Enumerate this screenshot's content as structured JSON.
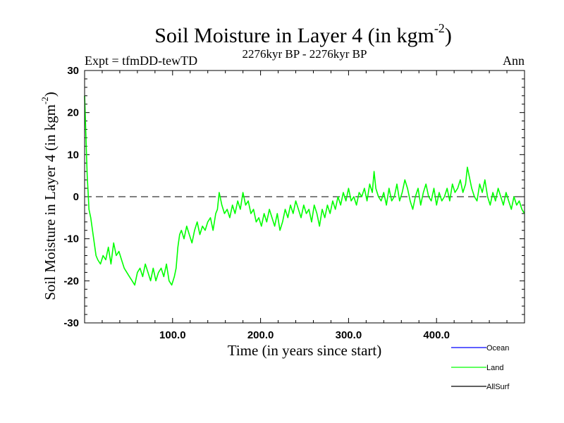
{
  "chart_data": {
    "type": "line",
    "title": "Soil Moisture in Layer 4 (in kgm",
    "title_sup": "-2",
    "title_close": ")",
    "subtitle_left": "Expt = tfmDD-tewTD",
    "subtitle_center": "2276kyr BP - 2276kyr BP",
    "subtitle_right": "Ann",
    "xlabel": "Time (in years since start)",
    "ylabel": "Soil Moisture in Layer 4 (in kgm",
    "ylabel_sup": "-2",
    "ylabel_close": ")",
    "xlim": [
      0,
      500
    ],
    "ylim": [
      -30,
      30
    ],
    "x_ticks": [
      {
        "value": 100,
        "label": "100.0"
      },
      {
        "value": 200,
        "label": "200.0"
      },
      {
        "value": 300,
        "label": "300.0"
      },
      {
        "value": 400,
        "label": "400.0"
      }
    ],
    "y_ticks": [
      {
        "value": -30,
        "label": "-30"
      },
      {
        "value": -20,
        "label": "-20"
      },
      {
        "value": -10,
        "label": "-10"
      },
      {
        "value": 0,
        "label": "0"
      },
      {
        "value": 10,
        "label": "10"
      },
      {
        "value": 20,
        "label": "20"
      },
      {
        "value": 30,
        "label": "30"
      }
    ],
    "reference_line": 0,
    "legend": [
      {
        "name": "Ocean",
        "color": "#0000ff"
      },
      {
        "name": "Land",
        "color": "#00ff00"
      },
      {
        "name": "AllSurf",
        "color": "#000000"
      }
    ],
    "series": [
      {
        "name": "Land",
        "color": "#00ff00",
        "x": [
          0,
          1,
          2,
          3,
          4,
          5,
          7,
          9,
          11,
          13,
          15,
          18,
          21,
          24,
          27,
          30,
          33,
          36,
          39,
          42,
          45,
          48,
          51,
          54,
          57,
          60,
          63,
          66,
          69,
          72,
          75,
          78,
          81,
          84,
          87,
          90,
          93,
          96,
          99,
          102,
          104,
          106,
          108,
          110,
          113,
          116,
          119,
          122,
          125,
          128,
          131,
          134,
          137,
          140,
          143,
          146,
          149,
          151,
          153,
          156,
          159,
          162,
          165,
          168,
          171,
          174,
          177,
          180,
          183,
          186,
          189,
          192,
          195,
          198,
          201,
          204,
          207,
          210,
          213,
          216,
          219,
          222,
          225,
          228,
          231,
          234,
          237,
          240,
          243,
          246,
          249,
          252,
          255,
          258,
          261,
          264,
          267,
          270,
          273,
          276,
          279,
          282,
          285,
          288,
          291,
          294,
          297,
          300,
          303,
          306,
          309,
          312,
          315,
          318,
          321,
          324,
          327,
          329,
          331,
          334,
          337,
          340,
          343,
          346,
          349,
          352,
          355,
          358,
          361,
          364,
          367,
          370,
          373,
          376,
          379,
          382,
          385,
          388,
          391,
          394,
          397,
          400,
          403,
          406,
          409,
          412,
          415,
          418,
          421,
          424,
          427,
          430,
          433,
          435,
          437,
          440,
          443,
          446,
          449,
          452,
          455,
          458,
          461,
          464,
          467,
          470,
          473,
          476,
          479,
          482,
          485,
          488,
          491,
          494,
          497,
          500
        ],
        "values": [
          24,
          18,
          11,
          5,
          1,
          -3,
          -5,
          -8,
          -11,
          -14,
          -15,
          -16,
          -14,
          -15,
          -12,
          -16,
          -11,
          -14,
          -13,
          -15,
          -17,
          -18,
          -19,
          -20,
          -21,
          -18,
          -17,
          -19,
          -16,
          -18,
          -20,
          -17,
          -20,
          -18,
          -17,
          -19,
          -16,
          -20,
          -21,
          -19,
          -17,
          -12,
          -9,
          -8,
          -10,
          -7,
          -9,
          -11,
          -8,
          -6,
          -9,
          -7,
          -8,
          -6,
          -5,
          -8,
          -4,
          -3,
          1,
          -2,
          -4,
          -3,
          -5,
          -2,
          -4,
          -1,
          -3,
          1,
          -2,
          -1,
          -4,
          -3,
          -6,
          -5,
          -7,
          -4,
          -6,
          -3,
          -5,
          -7,
          -4,
          -8,
          -6,
          -3,
          -5,
          -2,
          -4,
          -1,
          -3,
          -5,
          -2,
          -4,
          -3,
          -6,
          -2,
          -4,
          -7,
          -3,
          -5,
          -2,
          -4,
          -1,
          -3,
          0,
          -2,
          1,
          -1,
          2,
          -1,
          0,
          -2,
          1,
          0,
          2,
          -1,
          3,
          1,
          6,
          2,
          0,
          -1,
          1,
          -2,
          2,
          -1,
          0,
          3,
          -1,
          1,
          4,
          2,
          -1,
          -3,
          0,
          2,
          -2,
          1,
          3,
          0,
          -1,
          2,
          -2,
          1,
          -1,
          0,
          2,
          -1,
          3,
          1,
          2,
          4,
          1,
          3,
          7,
          5,
          2,
          0,
          -1,
          3,
          1,
          4,
          0,
          -2,
          1,
          -1,
          2,
          0,
          -2,
          1,
          -1,
          -3,
          0,
          -2,
          -1,
          -3,
          -4
        ]
      }
    ]
  }
}
